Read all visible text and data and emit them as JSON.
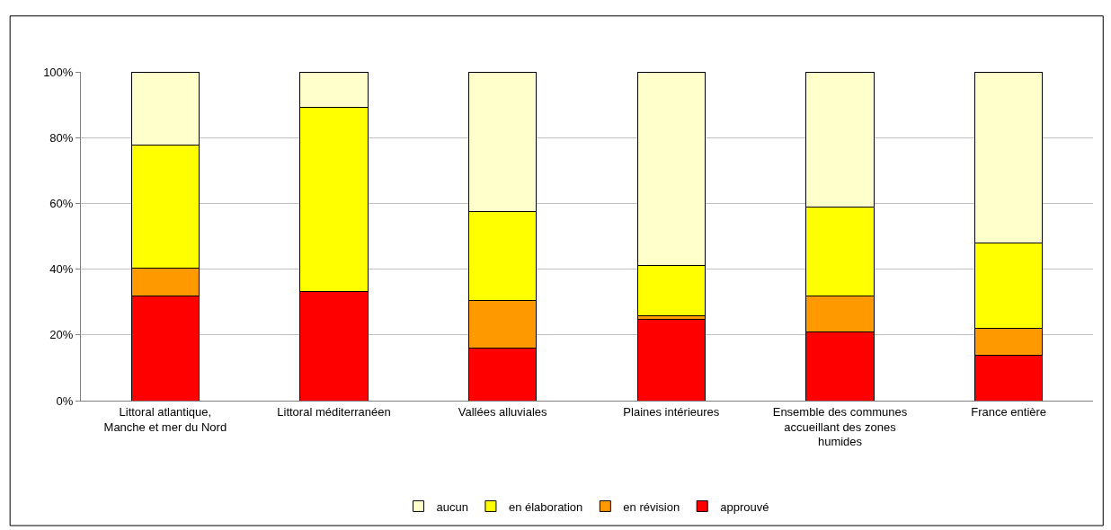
{
  "chart_data": {
    "type": "bar",
    "stacked": true,
    "categories": [
      "Littoral atlantique, Manche et mer du Nord",
      "Littoral méditerranéen",
      "Vallées alluviales",
      "Plaines intérieures",
      "Ensemble des communes accueillant des zones humides",
      "France entière"
    ],
    "series": [
      {
        "name": "approuvé",
        "color": "#ff0000",
        "values": [
          31.7,
          33.1,
          16.1,
          24.7,
          20.9,
          13.7
        ]
      },
      {
        "name": "en révision",
        "color": "#ff9900",
        "values": [
          8.6,
          0.2,
          14.4,
          1.2,
          10.8,
          8.4
        ]
      },
      {
        "name": "en élaboration",
        "color": "#ffff00",
        "values": [
          37.4,
          55.9,
          27.1,
          15.1,
          27.1,
          25.9
        ]
      },
      {
        "name": "aucun",
        "color": "#ffffcc",
        "values": [
          22.3,
          10.8,
          42.4,
          59.0,
          41.2,
          52.0
        ]
      }
    ],
    "ylim": [
      0,
      100
    ],
    "yticks": [
      {
        "value": 0,
        "label": "0%"
      },
      {
        "value": 20,
        "label": "20%"
      },
      {
        "value": 40,
        "label": "40%"
      },
      {
        "value": 60,
        "label": "60%"
      },
      {
        "value": 80,
        "label": "80%"
      },
      {
        "value": 100,
        "label": "100%"
      }
    ],
    "grid": "y",
    "legend": "bottom"
  }
}
